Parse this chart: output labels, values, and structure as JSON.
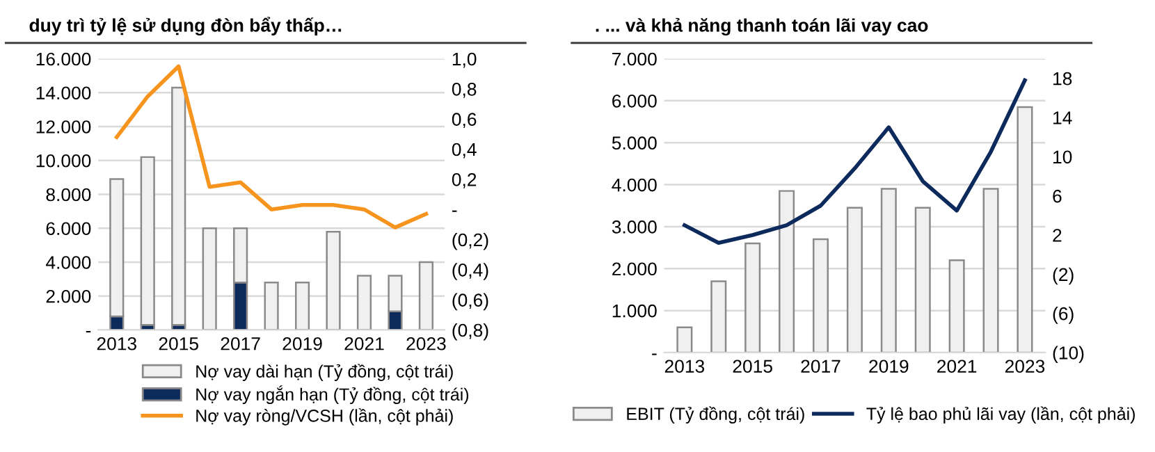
{
  "chart_data": [
    {
      "type": "bar",
      "title": "duy trì tỷ lệ sử dụng đòn bẩy thấp…",
      "stacked": true,
      "grid": "y",
      "legend": "bottom",
      "categories": [
        "2013",
        null,
        "2015",
        null,
        "2017",
        null,
        "2019",
        null,
        "2021",
        null,
        "2023"
      ],
      "series": [
        {
          "name": "Nợ vay ngắn hạn (Tỷ đồng, cột trái)",
          "color": "#0d2a5c",
          "values": [
            800,
            300,
            300,
            0,
            2800,
            0,
            0,
            0,
            0,
            1100,
            0
          ]
        },
        {
          "name": "Nợ vay dài hạn (Tỷ đồng, cột trái)",
          "color": "#f0f0f0",
          "values": [
            8100,
            9900,
            14000,
            6000,
            3200,
            2800,
            2800,
            5800,
            3200,
            2100,
            4000
          ]
        },
        {
          "name": "Nợ vay ròng/VCSH (lần, cột phải)",
          "type": "line",
          "axis": "y2",
          "color": "#f7941d",
          "values": [
            0.48,
            0.75,
            0.95,
            0.15,
            0.18,
            0.0,
            0.03,
            0.03,
            0.0,
            -0.12,
            -0.03
          ]
        }
      ],
      "ylim": [
        0,
        16000
      ],
      "yticks": [
        {
          "value": 0,
          "label": "-"
        },
        {
          "value": 2000,
          "label": "2.000"
        },
        {
          "value": 4000,
          "label": "4.000"
        },
        {
          "value": 6000,
          "label": "6.000"
        },
        {
          "value": 8000,
          "label": "8.000"
        },
        {
          "value": 10000,
          "label": "10.000"
        },
        {
          "value": 12000,
          "label": "12.000"
        },
        {
          "value": 14000,
          "label": "14.000"
        },
        {
          "value": 16000,
          "label": "16.000"
        }
      ],
      "y2lim": [
        -0.8,
        1.0
      ],
      "y2ticks": [
        {
          "value": -0.8,
          "label": "(0,8)"
        },
        {
          "value": -0.6,
          "label": "(0,6)"
        },
        {
          "value": -0.4,
          "label": "(0,4)"
        },
        {
          "value": -0.2,
          "label": "(0,2)"
        },
        {
          "value": 0,
          "label": "-"
        },
        {
          "value": 0.2,
          "label": "0,2"
        },
        {
          "value": 0.4,
          "label": "0,4"
        },
        {
          "value": 0.6,
          "label": "0,6"
        },
        {
          "value": 0.8,
          "label": "0,8"
        },
        {
          "value": 1.0,
          "label": "1,0"
        }
      ]
    },
    {
      "type": "bar",
      "title": ". ... và khả năng thanh toán lãi vay cao",
      "grid": "y",
      "legend": "bottom",
      "categories": [
        "2013",
        null,
        "2015",
        null,
        "2017",
        null,
        "2019",
        null,
        "2021",
        null,
        "2023"
      ],
      "series": [
        {
          "name": "EBIT (Tỷ đồng, cột trái)",
          "color": "#f0f0f0",
          "values": [
            600,
            1700,
            2600,
            3850,
            2700,
            3450,
            3900,
            3450,
            2200,
            3900,
            5850
          ]
        },
        {
          "name": "Tỷ lệ bao phủ lãi vay (lần, cột phải)",
          "type": "line",
          "axis": "y2",
          "color": "#0d2a5c",
          "values": [
            3.0,
            1.2,
            2.0,
            3.0,
            5.0,
            8.8,
            13.0,
            7.5,
            4.5,
            10.5,
            17.8
          ]
        }
      ],
      "ylim": [
        0,
        7000
      ],
      "yticks": [
        {
          "value": 0,
          "label": "-"
        },
        {
          "value": 1000,
          "label": "1.000"
        },
        {
          "value": 2000,
          "label": "2.000"
        },
        {
          "value": 3000,
          "label": "3.000"
        },
        {
          "value": 4000,
          "label": "4.000"
        },
        {
          "value": 5000,
          "label": "5.000"
        },
        {
          "value": 6000,
          "label": "6.000"
        },
        {
          "value": 7000,
          "label": "7.000"
        }
      ],
      "y2lim": [
        -10,
        20
      ],
      "y2ticks": [
        {
          "value": -10,
          "label": "(10)"
        },
        {
          "value": -6,
          "label": "(6)"
        },
        {
          "value": -2,
          "label": "(2)"
        },
        2,
        6,
        10,
        14,
        18
      ]
    }
  ]
}
